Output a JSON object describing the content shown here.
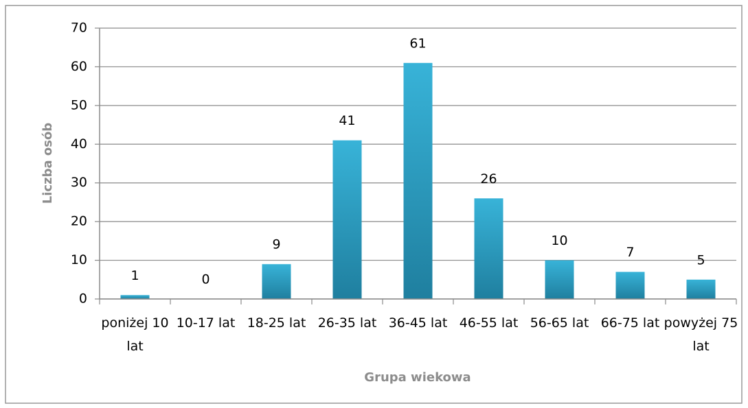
{
  "chart_data": {
    "type": "bar",
    "categories": [
      "poniżej 10 lat",
      "10-17 lat",
      "18-25 lat",
      "26-35 lat",
      "36-45 lat",
      "46-55 lat",
      "56-65 lat",
      "66-75 lat",
      "powyżej 75 lat"
    ],
    "values": [
      1,
      0,
      9,
      41,
      61,
      26,
      10,
      7,
      5
    ],
    "color": "#38b3d8",
    "xlabel": "Grupa wiekowa",
    "ylabel": "Liczba osób",
    "ylim": [
      0,
      70
    ],
    "yticks": [
      0,
      10,
      20,
      30,
      40,
      50,
      60,
      70
    ],
    "grid": true
  }
}
